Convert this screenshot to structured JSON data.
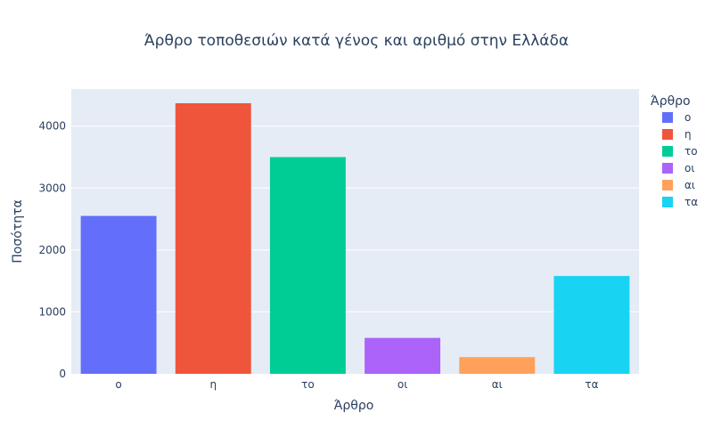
{
  "chart_data": {
    "type": "bar",
    "title": "Άρθρο τοποθεσιών κατά γένος και αριθμό στην Ελλάδα",
    "xlabel": "Άρθρο",
    "ylabel": "Ποσότητα",
    "categories": [
      "ο",
      "η",
      "το",
      "οι",
      "αι",
      "τα"
    ],
    "values": [
      2550,
      4370,
      3500,
      580,
      270,
      1580
    ],
    "colors": [
      "#636efa",
      "#ef553b",
      "#00cc96",
      "#ab63fa",
      "#ffa15a",
      "#19d3f3"
    ],
    "ylim": [
      0,
      4600
    ],
    "yticks": [
      0,
      1000,
      2000,
      3000,
      4000
    ],
    "grid": true,
    "legend": {
      "title": "Άρθρο",
      "placement": "right",
      "entries": [
        "ο",
        "η",
        "το",
        "οι",
        "αι",
        "τα"
      ]
    },
    "background_color": "#e5ecf6"
  }
}
